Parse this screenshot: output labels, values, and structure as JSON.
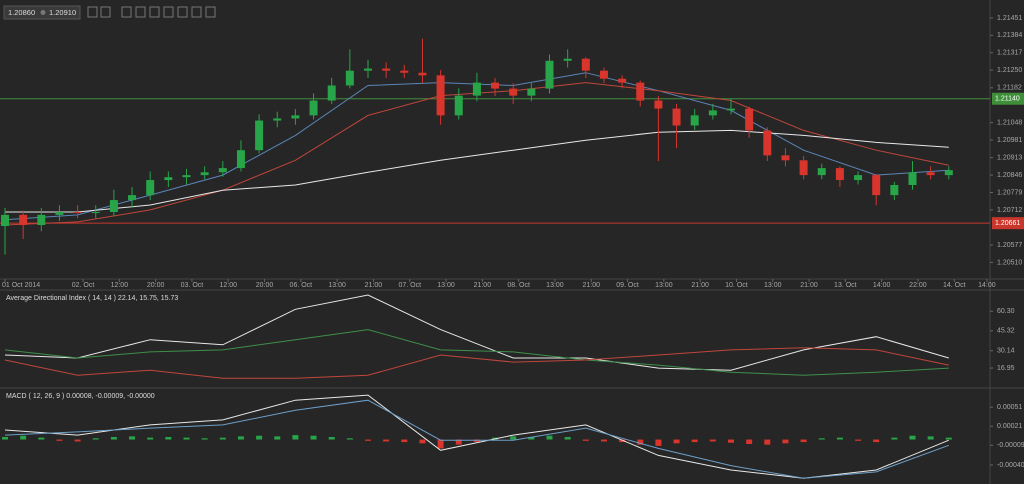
{
  "toolbar": {
    "bid": "1.20860",
    "ask": "1.20910"
  },
  "chart_data": [
    {
      "type": "candlestick",
      "up_color": "#27a548",
      "down_color": "#d8352c",
      "candles": [
        [
          1.2065,
          1.2072,
          1.2054,
          1.20693
        ],
        [
          1.20693,
          1.2071,
          1.206,
          1.20654
        ],
        [
          1.20654,
          1.2072,
          1.2063,
          1.20693
        ],
        [
          1.20693,
          1.2073,
          1.2067,
          1.20704
        ],
        [
          1.20704,
          1.2073,
          1.2068,
          1.207
        ],
        [
          1.207,
          1.2073,
          1.2068,
          1.20704
        ],
        [
          1.20704,
          1.2079,
          1.2069,
          1.2075
        ],
        [
          1.2075,
          1.208,
          1.2072,
          1.20769
        ],
        [
          1.20769,
          1.2086,
          1.2075,
          1.20827
        ],
        [
          1.20827,
          1.2086,
          1.208,
          1.20838
        ],
        [
          1.20838,
          1.2087,
          1.2081,
          1.20846
        ],
        [
          1.20846,
          1.2088,
          1.2083,
          1.20857
        ],
        [
          1.20857,
          1.209,
          1.2084,
          1.20873
        ],
        [
          1.20873,
          1.2098,
          1.2086,
          1.20942
        ],
        [
          1.20942,
          1.2108,
          1.2093,
          1.21056
        ],
        [
          1.21056,
          1.2109,
          1.2103,
          1.21064
        ],
        [
          1.21064,
          1.211,
          1.2104,
          1.21076
        ],
        [
          1.21076,
          1.2116,
          1.2106,
          1.21133
        ],
        [
          1.21133,
          1.2122,
          1.2112,
          1.21191
        ],
        [
          1.21191,
          1.2133,
          1.2118,
          1.21248
        ],
        [
          1.21248,
          1.2129,
          1.2122,
          1.21256
        ],
        [
          1.21256,
          1.2128,
          1.2122,
          1.21248
        ],
        [
          1.21248,
          1.2127,
          1.2122,
          1.2124
        ],
        [
          1.2124,
          1.21371,
          1.212,
          1.2123
        ],
        [
          1.2123,
          1.2125,
          1.2104,
          1.21076
        ],
        [
          1.21076,
          1.2118,
          1.2106,
          1.21152
        ],
        [
          1.21152,
          1.2124,
          1.2113,
          1.21202
        ],
        [
          1.21202,
          1.2122,
          1.2115,
          1.21179
        ],
        [
          1.21179,
          1.212,
          1.2112,
          1.21152
        ],
        [
          1.21152,
          1.212,
          1.2113,
          1.21179
        ],
        [
          1.21179,
          1.2131,
          1.2116,
          1.21286
        ],
        [
          1.21286,
          1.2133,
          1.2126,
          1.21294
        ],
        [
          1.21294,
          1.213,
          1.2122,
          1.21248
        ],
        [
          1.21248,
          1.2126,
          1.212,
          1.21217
        ],
        [
          1.21217,
          1.2123,
          1.2118,
          1.21202
        ],
        [
          1.21202,
          1.2121,
          1.2111,
          1.21133
        ],
        [
          1.21133,
          1.2115,
          1.209,
          1.21102
        ],
        [
          1.21102,
          1.2112,
          1.2095,
          1.21037
        ],
        [
          1.21037,
          1.211,
          1.2102,
          1.21076
        ],
        [
          1.21076,
          1.2112,
          1.2106,
          1.21095
        ],
        [
          1.21095,
          1.2114,
          1.2108,
          1.21102
        ],
        [
          1.21102,
          1.2111,
          1.2099,
          1.21018
        ],
        [
          1.21018,
          1.2103,
          1.209,
          1.20922
        ],
        [
          1.20922,
          1.2095,
          1.2088,
          1.20903
        ],
        [
          1.20903,
          1.2092,
          1.2083,
          1.20846
        ],
        [
          1.20846,
          1.2089,
          1.2083,
          1.20873
        ],
        [
          1.20873,
          1.2088,
          1.208,
          1.20827
        ],
        [
          1.20827,
          1.2086,
          1.2081,
          1.20846
        ],
        [
          1.20846,
          1.2085,
          1.2073,
          1.20769
        ],
        [
          1.20769,
          1.2082,
          1.2075,
          1.20808
        ],
        [
          1.20808,
          1.209,
          1.2079,
          1.20857
        ],
        [
          1.20857,
          1.2088,
          1.2083,
          1.20846
        ],
        [
          1.20846,
          1.2088,
          1.2083,
          1.20865
        ]
      ],
      "overlays": [
        {
          "color": "#5b86b8",
          "x": [
            0,
            4,
            8,
            12,
            16,
            20,
            24,
            28,
            32,
            36,
            40,
            44,
            48,
            52
          ],
          "values": [
            1.20674,
            1.20693,
            1.20769,
            1.20846,
            1.20999,
            1.21191,
            1.21202,
            1.21191,
            1.2124,
            1.21171,
            1.21095,
            1.20942,
            1.20846,
            1.20865
          ]
        },
        {
          "color": "#c0463b",
          "x": [
            0,
            4,
            8,
            12,
            16,
            20,
            24,
            28,
            32,
            36,
            40,
            44,
            48,
            52
          ],
          "values": [
            1.20654,
            1.20666,
            1.20712,
            1.20788,
            1.20903,
            1.21076,
            1.21152,
            1.21171,
            1.21202,
            1.21171,
            1.21133,
            1.21018,
            1.20942,
            1.20884
          ]
        },
        {
          "color": "#e8e8e8",
          "x": [
            0,
            4,
            8,
            12,
            16,
            20,
            24,
            28,
            32,
            36,
            40,
            44,
            48,
            52
          ],
          "values": [
            1.20704,
            1.20704,
            1.20731,
            1.20788,
            1.20808,
            1.20857,
            1.20903,
            1.20942,
            1.2098,
            1.21011,
            1.21018,
            1.20999,
            1.20972,
            1.20953
          ]
        }
      ],
      "levels": [
        {
          "value": 1.2114,
          "label": "1.21140",
          "color": "#3f8f3a"
        },
        {
          "value": 1.20661,
          "label": "1.20661",
          "color": "#c9372c"
        }
      ],
      "xlim": [
        0,
        54.27
      ],
      "xticks": [
        {
          "value": 0,
          "label": "01 Oct 2014"
        },
        {
          "value": 4.3,
          "label": "02. Oct"
        },
        {
          "value": 6.3,
          "label": "12:00"
        },
        {
          "value": 8.3,
          "label": "20:00"
        },
        {
          "value": 10.3,
          "label": "03. Oct"
        },
        {
          "value": 12.3,
          "label": "12:00"
        },
        {
          "value": 14.3,
          "label": "20:00"
        },
        {
          "value": 16.3,
          "label": "06. Oct"
        },
        {
          "value": 18.3,
          "label": "13:00"
        },
        {
          "value": 20.3,
          "label": "21:00"
        },
        {
          "value": 22.3,
          "label": "07. Oct"
        },
        {
          "value": 24.3,
          "label": "13:00"
        },
        {
          "value": 26.3,
          "label": "21:00"
        },
        {
          "value": 28.3,
          "label": "08. Oct"
        },
        {
          "value": 30.3,
          "label": "13:00"
        },
        {
          "value": 32.3,
          "label": "21:00"
        },
        {
          "value": 34.3,
          "label": "09. Oct"
        },
        {
          "value": 36.3,
          "label": "13:00"
        },
        {
          "value": 38.3,
          "label": "21:00"
        },
        {
          "value": 40.3,
          "label": "10. Oct"
        },
        {
          "value": 42.3,
          "label": "13:00"
        },
        {
          "value": 44.3,
          "label": "21:00"
        },
        {
          "value": 46.3,
          "label": "13. Oct"
        },
        {
          "value": 48.3,
          "label": "14:00"
        },
        {
          "value": 50.3,
          "label": "22:00"
        },
        {
          "value": 52.3,
          "label": "14. Oct"
        },
        {
          "value": 54.1,
          "label": "14:00"
        }
      ],
      "ylim": [
        1.2045,
        1.2152
      ],
      "yticks": [
        1.21451,
        1.21384,
        1.21317,
        {
          "value": 1.2125,
          "label": "1.21250"
        },
        1.21182,
        1.21048,
        1.20981,
        1.20913,
        1.20846,
        1.20779,
        1.20712,
        1.20577,
        {
          "value": 1.2051,
          "label": "1.20510"
        }
      ]
    },
    {
      "type": "line",
      "title": "Average Directional Index ( 14, 14 ) 22.14, 15.75, 15.73",
      "x": [
        0,
        4,
        8,
        12,
        16,
        20,
        24,
        28,
        32,
        36,
        40,
        44,
        48,
        52
      ],
      "series": [
        {
          "color": "#e8e8e8",
          "values": [
            26.9,
            24.6,
            38.6,
            34.7,
            61.8,
            72.7,
            46.3,
            24.6,
            24.6,
            16.9,
            15.3,
            30.8,
            40.9,
            24.6
          ]
        },
        {
          "color": "#3f8f4a",
          "values": [
            30.8,
            24.6,
            29.3,
            30.8,
            38.6,
            46.3,
            30.8,
            29.3,
            23.1,
            19.2,
            13.8,
            11.5,
            13.8,
            16.9
          ]
        },
        {
          "color": "#c0463b",
          "values": [
            23.1,
            11.5,
            15.3,
            9.1,
            9.1,
            11.5,
            26.9,
            21.5,
            23.1,
            26.9,
            30.8,
            32.4,
            30.8,
            19.2
          ]
        }
      ],
      "xlim": [
        0,
        54.27
      ],
      "ylim": [
        4,
        75
      ],
      "yticks": [
        {
          "value": 60.3,
          "label": "60.30"
        },
        45.32,
        30.14,
        16.95
      ]
    },
    {
      "type": "macd",
      "title": "MACD ( 12, 26, 9 ) 0.00008, -0.00009, -0.00000",
      "up_color": "#27a548",
      "down_color": "#d8352c",
      "x": [
        0,
        4,
        8,
        12,
        16,
        20,
        24,
        28,
        32,
        36,
        40,
        44,
        48,
        52
      ],
      "series": [
        {
          "color": "#e8e8e8",
          "values": [
            0.00015,
            7e-05,
            0.00023,
            0.00031,
            0.00062,
            0.0007,
            -0.00017,
            7e-05,
            0.00023,
            -0.00025,
            -0.00048,
            -0.00061,
            -0.00048,
            -1e-05
          ]
        },
        {
          "color": "#6d9fc9",
          "values": [
            7e-05,
            0.00012,
            0.00018,
            0.00023,
            0.00046,
            0.00062,
            -1e-05,
            -1e-05,
            0.00018,
            -0.00014,
            -0.00041,
            -0.00061,
            -0.00051,
            -9e-05
          ]
        }
      ],
      "histogram": [
        4e-05,
        6e-05,
        3e-05,
        -2e-05,
        -3e-05,
        2e-05,
        4e-05,
        5e-05,
        3e-05,
        4e-05,
        3e-05,
        2e-05,
        3e-05,
        5e-05,
        6e-05,
        5e-05,
        7e-05,
        6e-05,
        4e-05,
        2e-05,
        -2e-05,
        -3e-05,
        -4e-05,
        -6e-05,
        -0.00014,
        -8e-05,
        -4e-05,
        3e-05,
        5e-05,
        4e-05,
        6e-05,
        4e-05,
        -2e-05,
        -3e-05,
        -4e-05,
        -8e-05,
        -0.0001,
        -6e-05,
        -4e-05,
        -3e-05,
        -5e-05,
        -7e-05,
        -8e-05,
        -6e-05,
        -4e-05,
        2e-05,
        3e-05,
        -2e-05,
        -4e-05,
        3e-05,
        6e-05,
        5e-05,
        3e-05
      ],
      "xlim": [
        0,
        54.27
      ],
      "ylim": [
        -0.0007,
        0.00078
      ],
      "yticks": [
        0.00051,
        0.00021,
        -9e-05,
        {
          "value": -0.0004,
          "label": "-0.00040"
        }
      ]
    }
  ]
}
